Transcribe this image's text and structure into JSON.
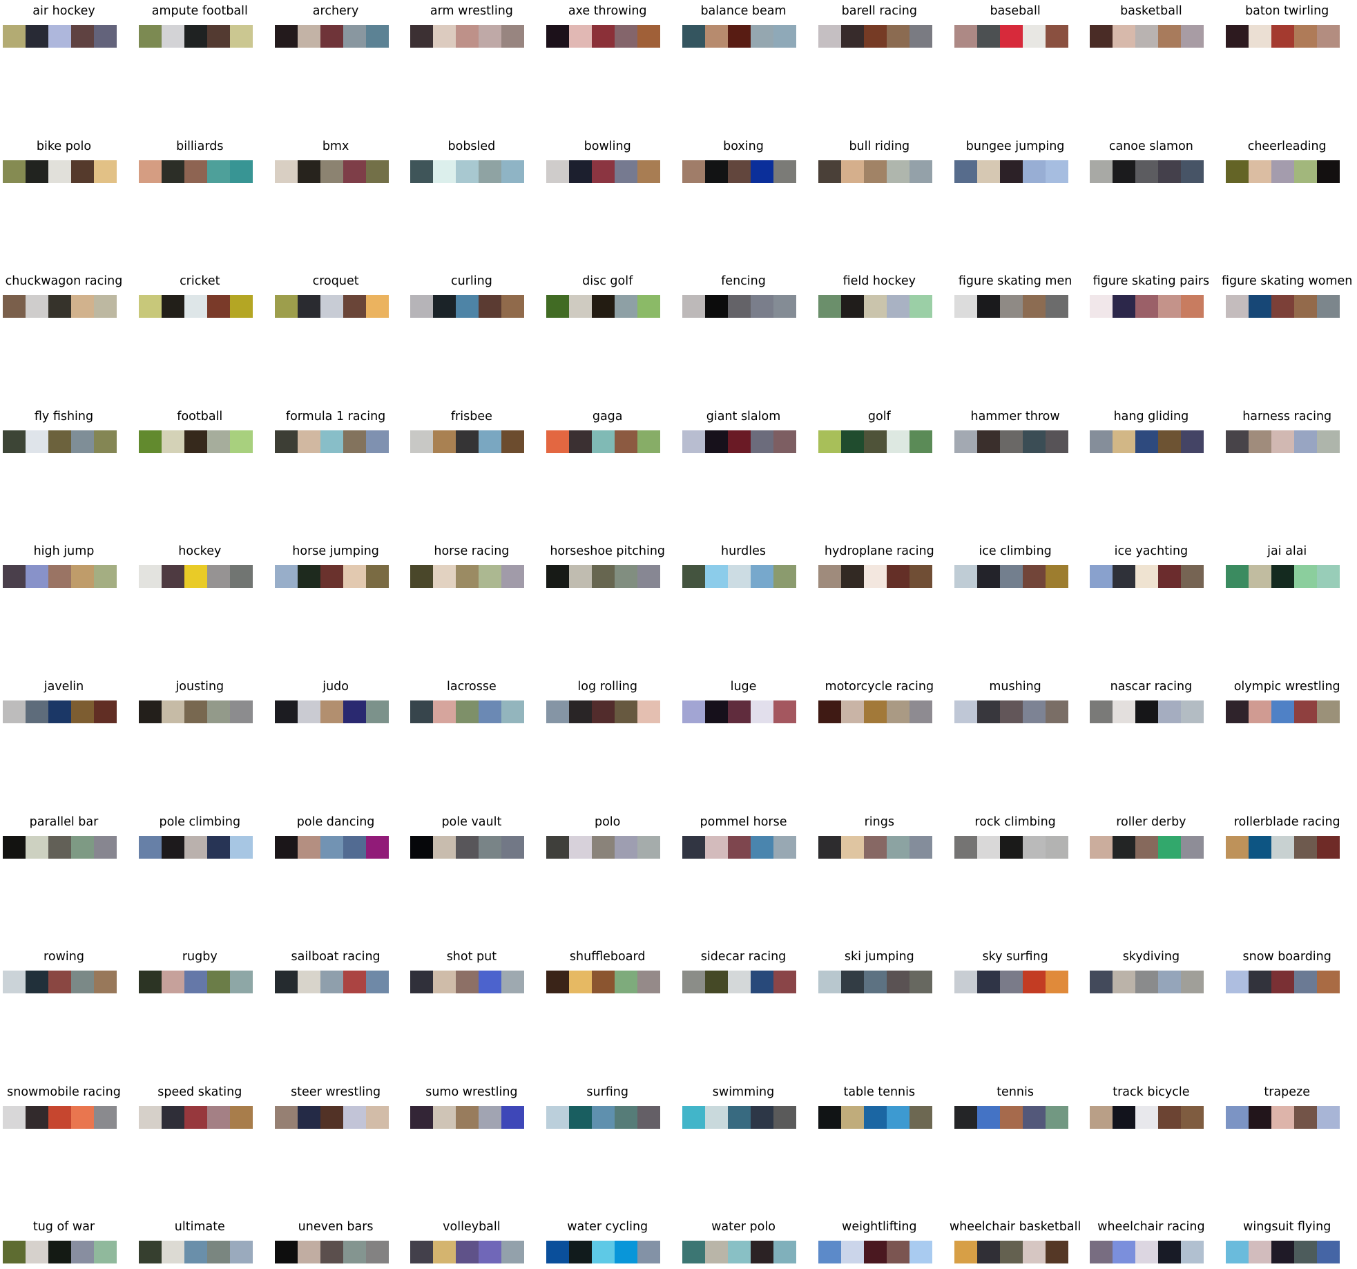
{
  "chart_data": {
    "type": "palette-grid",
    "grid": {
      "columns": 10,
      "rows": 10
    },
    "palettes": [
      {
        "name": "air hockey",
        "colors": [
          "#b3ab73",
          "#282a35",
          "#aeb7dc",
          "#5f4241",
          "#63637b"
        ]
      },
      {
        "name": "ampute football",
        "colors": [
          "#7c8a52",
          "#d3d3d6",
          "#1f2222",
          "#533a31",
          "#cbc791"
        ]
      },
      {
        "name": "archery",
        "colors": [
          "#231a1c",
          "#c3b3a6",
          "#6f3439",
          "#8997a0",
          "#5c8294"
        ]
      },
      {
        "name": "arm wrestling",
        "colors": [
          "#3c3033",
          "#dccbbf",
          "#be9189",
          "#bfa9a7",
          "#988580"
        ]
      },
      {
        "name": "axe throwing",
        "colors": [
          "#1c111a",
          "#e1b8b4",
          "#8b3038",
          "#84656b",
          "#a06038"
        ]
      },
      {
        "name": "balance beam",
        "colors": [
          "#34555f",
          "#b78b6e",
          "#581c13",
          "#95a7b0",
          "#8fa9b8"
        ]
      },
      {
        "name": "barell racing",
        "colors": [
          "#c5bfc2",
          "#372b2b",
          "#763b25",
          "#8b6b51",
          "#7a7b82"
        ]
      },
      {
        "name": "baseball",
        "colors": [
          "#ad8985",
          "#4c5052",
          "#d72a3b",
          "#e8e7e3",
          "#8a5040"
        ]
      },
      {
        "name": "basketball",
        "colors": [
          "#4a2c26",
          "#d7b9ab",
          "#b9b3b1",
          "#a87b5c",
          "#a89ca4"
        ]
      },
      {
        "name": "baton twirling",
        "colors": [
          "#2d1a1f",
          "#ebdfd3",
          "#a43a2f",
          "#af7b58",
          "#b38d80"
        ]
      },
      {
        "name": "bike polo",
        "colors": [
          "#858b52",
          "#21231f",
          "#e1e0da",
          "#553a2c",
          "#e2c186"
        ]
      },
      {
        "name": "billiards",
        "colors": [
          "#d59d82",
          "#2c2e27",
          "#8e6452",
          "#4ea09a",
          "#389594"
        ]
      },
      {
        "name": "bmx",
        "colors": [
          "#d9cfc3",
          "#27231d",
          "#8c8371",
          "#7e3e48",
          "#737048"
        ]
      },
      {
        "name": "bobsled",
        "colors": [
          "#3f5559",
          "#dcefec",
          "#a8c8d0",
          "#8fa3a3",
          "#8fb4c5"
        ]
      },
      {
        "name": "bowling",
        "colors": [
          "#cfcccb",
          "#1c1f2e",
          "#8b3541",
          "#767a90",
          "#a87d53"
        ]
      },
      {
        "name": "boxing",
        "colors": [
          "#a07d69",
          "#121314",
          "#62463d",
          "#0b2f9a",
          "#7b7b77"
        ]
      },
      {
        "name": "bull riding",
        "colors": [
          "#4a4038",
          "#d5af8c",
          "#a18366",
          "#afb6ad",
          "#94a1a9"
        ]
      },
      {
        "name": "bungee jumping",
        "colors": [
          "#576c8c",
          "#d6c8b3",
          "#2c2127",
          "#98aed4",
          "#a6bde0"
        ]
      },
      {
        "name": "canoe slamon",
        "colors": [
          "#a8a9a5",
          "#1b1b1d",
          "#5c5c60",
          "#44404b",
          "#475466"
        ]
      },
      {
        "name": "cheerleading",
        "colors": [
          "#646426",
          "#dbbda2",
          "#a49cad",
          "#a2b77c",
          "#131010"
        ]
      },
      {
        "name": "chuckwagon racing",
        "colors": [
          "#7a5f4b",
          "#cfcdcc",
          "#36332b",
          "#d1b28d",
          "#bdb8a1"
        ]
      },
      {
        "name": "cricket",
        "colors": [
          "#c8c87a",
          "#221f19",
          "#dee6e8",
          "#7a3a29",
          "#b4a624"
        ]
      },
      {
        "name": "croquet",
        "colors": [
          "#9d9e4c",
          "#2a2b30",
          "#c8ccd5",
          "#6a4538",
          "#ebb35f"
        ]
      },
      {
        "name": "curling",
        "colors": [
          "#b6b4b8",
          "#1b2328",
          "#4e84a6",
          "#5b3b32",
          "#906a4b"
        ]
      },
      {
        "name": "disc golf",
        "colors": [
          "#416b24",
          "#cfcbc1",
          "#231c12",
          "#8ea0a5",
          "#8bba67"
        ]
      },
      {
        "name": "fencing",
        "colors": [
          "#bdb9b9",
          "#0c0c0c",
          "#646368",
          "#7a7e8b",
          "#848c95"
        ]
      },
      {
        "name": "field hockey",
        "colors": [
          "#6b8f6b",
          "#201d1b",
          "#cac4ac",
          "#a9b2c3",
          "#9bcfa6"
        ]
      },
      {
        "name": "figure skating men",
        "colors": [
          "#dcdcdc",
          "#1a1a1c",
          "#8f8a85",
          "#8c6c52",
          "#6c6c6c"
        ]
      },
      {
        "name": "figure skating pairs",
        "colors": [
          "#f1e7ea",
          "#2c274a",
          "#9b6068",
          "#c4938a",
          "#c87c60"
        ]
      },
      {
        "name": "figure skating women",
        "colors": [
          "#c4bcbd",
          "#174776",
          "#7c4038",
          "#936a4b",
          "#7c868c"
        ]
      },
      {
        "name": "fly fishing",
        "colors": [
          "#3d4536",
          "#dfe4ea",
          "#6c623d",
          "#7f8e97",
          "#848654"
        ]
      },
      {
        "name": "football",
        "colors": [
          "#628a2e",
          "#d4d2b7",
          "#36291c",
          "#a6ad9c",
          "#a8d07e"
        ]
      },
      {
        "name": "formula 1 racing",
        "colors": [
          "#3d3e35",
          "#d1b8a1",
          "#88bec8",
          "#83735d",
          "#7f91b0"
        ]
      },
      {
        "name": "frisbee",
        "colors": [
          "#c8c8c5",
          "#a98152",
          "#353435",
          "#7aa7c1",
          "#6c4c2e"
        ]
      },
      {
        "name": "gaga",
        "colors": [
          "#e36741",
          "#3b3032",
          "#80bab5",
          "#8c5a41",
          "#87ad67"
        ]
      },
      {
        "name": "giant slalom",
        "colors": [
          "#b8bdd0",
          "#17111b",
          "#6a1a25",
          "#6c6c7c",
          "#7d5e62"
        ]
      },
      {
        "name": "golf",
        "colors": [
          "#a8bf59",
          "#204c2e",
          "#4f5339",
          "#dde8e1",
          "#5b8b57"
        ]
      },
      {
        "name": "hammer throw",
        "colors": [
          "#a3a9b2",
          "#3a2f2c",
          "#6a6866",
          "#3b4d55",
          "#575357"
        ]
      },
      {
        "name": "hang gliding",
        "colors": [
          "#858e9a",
          "#d2b786",
          "#2e4a7e",
          "#6d5333",
          "#444465"
        ]
      },
      {
        "name": "harness racing",
        "colors": [
          "#484449",
          "#a08c7c",
          "#d1b8b2",
          "#98a5c2",
          "#aeb5ab"
        ]
      },
      {
        "name": "high jump",
        "colors": [
          "#4a3f4b",
          "#8892c9",
          "#9a7464",
          "#bf9c6a",
          "#a4ae82"
        ]
      },
      {
        "name": "hockey",
        "colors": [
          "#e3e3df",
          "#4e3a41",
          "#e9cb27",
          "#969393",
          "#717572"
        ]
      },
      {
        "name": "horse jumping",
        "colors": [
          "#98aec9",
          "#1e2a1e",
          "#6a322d",
          "#e2c9b0",
          "#7a6b43"
        ]
      },
      {
        "name": "horse racing",
        "colors": [
          "#4a472a",
          "#e2d2c1",
          "#9b8b63",
          "#acb891",
          "#a19ba9"
        ]
      },
      {
        "name": "horseshoe pitching",
        "colors": [
          "#171a16",
          "#c0bcb0",
          "#676650",
          "#818e80",
          "#878793"
        ]
      },
      {
        "name": "hurdles",
        "colors": [
          "#44543f",
          "#8cccea",
          "#ccdce3",
          "#77a8cc",
          "#8b9b6e"
        ]
      },
      {
        "name": "hydroplane racing",
        "colors": [
          "#9f8b7c",
          "#322923",
          "#f3e7df",
          "#642f27",
          "#704e35"
        ]
      },
      {
        "name": "ice climbing",
        "colors": [
          "#bfccd5",
          "#23232a",
          "#737f8e",
          "#724539",
          "#9d7d2f"
        ]
      },
      {
        "name": "ice yachting",
        "colors": [
          "#89a1cd",
          "#2f3139",
          "#efe3d1",
          "#6b2c2d",
          "#766453"
        ]
      },
      {
        "name": "jai alai",
        "colors": [
          "#3b8b60",
          "#c1bca0",
          "#142a1f",
          "#8bce9d",
          "#98cdb8"
        ]
      },
      {
        "name": "javelin",
        "colors": [
          "#bdbcbc",
          "#5e6c7b",
          "#1b3766",
          "#7d5d31",
          "#612e24"
        ]
      },
      {
        "name": "jousting",
        "colors": [
          "#231f1b",
          "#c6bba6",
          "#786850",
          "#939a8a",
          "#8c8c8e"
        ]
      },
      {
        "name": "judo",
        "colors": [
          "#1c1c21",
          "#cacbd2",
          "#b28f6f",
          "#2a2970",
          "#7c928b"
        ]
      },
      {
        "name": "lacrosse",
        "colors": [
          "#37454c",
          "#d6a59d",
          "#7e9069",
          "#6b89b4",
          "#93b5bd"
        ]
      },
      {
        "name": "log rolling",
        "colors": [
          "#8595a5",
          "#292526",
          "#522c2c",
          "#675940",
          "#e4bfb1"
        ]
      },
      {
        "name": "luge",
        "colors": [
          "#a2a5d3",
          "#16101b",
          "#602c3d",
          "#e2dfec",
          "#a4575f"
        ]
      },
      {
        "name": "motorcycle racing",
        "colors": [
          "#3f1a14",
          "#c9b4a6",
          "#a27939",
          "#aa9a84",
          "#8e8b91"
        ]
      },
      {
        "name": "mushing",
        "colors": [
          "#bfc7d6",
          "#38373d",
          "#625659",
          "#7d8394",
          "#7a6e66"
        ]
      },
      {
        "name": "nascar racing",
        "colors": [
          "#7a7a78",
          "#e3dfdd",
          "#161618",
          "#a5adc0",
          "#b3bcc3"
        ]
      },
      {
        "name": "olympic wrestling",
        "colors": [
          "#2f232b",
          "#d09b92",
          "#4f81c6",
          "#8f403f",
          "#9b9179"
        ]
      },
      {
        "name": "parallel bar",
        "colors": [
          "#131311",
          "#cdd1c1",
          "#626057",
          "#7e9a84",
          "#878690"
        ]
      },
      {
        "name": "pole climbing",
        "colors": [
          "#6780a7",
          "#1d1a1c",
          "#bab1ad",
          "#273455",
          "#a7c6e3"
        ]
      },
      {
        "name": "pole dancing",
        "colors": [
          "#1b1619",
          "#b48f81",
          "#7293b3",
          "#526b92",
          "#911b78"
        ]
      },
      {
        "name": "pole vault",
        "colors": [
          "#06070a",
          "#c8bcae",
          "#58565a",
          "#798487",
          "#727886"
        ]
      },
      {
        "name": "polo",
        "colors": [
          "#3f3f3b",
          "#d7d1da",
          "#8a837a",
          "#9e9eb1",
          "#a5acab"
        ]
      },
      {
        "name": "pommel horse",
        "colors": [
          "#313542",
          "#d3bbbc",
          "#7e464e",
          "#4a85ae",
          "#98a8b3"
        ]
      },
      {
        "name": "rings",
        "colors": [
          "#2d2c2e",
          "#dfc5a1",
          "#876864",
          "#8ca3a2",
          "#848d9b"
        ]
      },
      {
        "name": "rock climbing",
        "colors": [
          "#757473",
          "#d9d8d8",
          "#1a1a19",
          "#bababa",
          "#b3b3b2"
        ]
      },
      {
        "name": "roller derby",
        "colors": [
          "#cbad9d",
          "#232525",
          "#86695c",
          "#32a86c",
          "#8e8d97"
        ]
      },
      {
        "name": "rollerblade racing",
        "colors": [
          "#be925a",
          "#0d5583",
          "#c8d1d1",
          "#6e5a4e",
          "#6f2b27"
        ]
      },
      {
        "name": "rowing",
        "colors": [
          "#cbd3d8",
          "#21303a",
          "#8a4742",
          "#7b8987",
          "#98785a"
        ]
      },
      {
        "name": "rugby",
        "colors": [
          "#2c3424",
          "#c6a19b",
          "#6578a8",
          "#6b7d48",
          "#8ea7a6"
        ]
      },
      {
        "name": "sailboat racing",
        "colors": [
          "#252b2f",
          "#d8d4cb",
          "#8f9fac",
          "#ab4442",
          "#6f89a7"
        ]
      },
      {
        "name": "shot put",
        "colors": [
          "#30303a",
          "#cfbca9",
          "#8d7066",
          "#4c63cd",
          "#9ea9b0"
        ]
      },
      {
        "name": "shuffleboard",
        "colors": [
          "#3a2418",
          "#e6b963",
          "#8b5530",
          "#7eab7c",
          "#958a89"
        ]
      },
      {
        "name": "sidecar racing",
        "colors": [
          "#8b8d88",
          "#454926",
          "#d4d8d9",
          "#28497a",
          "#8a4548"
        ]
      },
      {
        "name": "ski jumping",
        "colors": [
          "#b8c7ce",
          "#323c44",
          "#5d7282",
          "#5a5253",
          "#676860"
        ]
      },
      {
        "name": "sky surfing",
        "colors": [
          "#c8cdd3",
          "#2f3446",
          "#7a7b89",
          "#c33c23",
          "#e08a3a"
        ]
      },
      {
        "name": "skydiving",
        "colors": [
          "#434a5b",
          "#bbb3a9",
          "#8a8b8c",
          "#95a5ba",
          "#a09f99"
        ]
      },
      {
        "name": "snow boarding",
        "colors": [
          "#aebee0",
          "#32333c",
          "#7a3034",
          "#6b7a94",
          "#a96b44"
        ]
      },
      {
        "name": "snowmobile racing",
        "colors": [
          "#d8d7d8",
          "#322a2c",
          "#c6462f",
          "#e9764f",
          "#8a8a8e"
        ]
      },
      {
        "name": "speed skating",
        "colors": [
          "#d6d0c9",
          "#2f2e38",
          "#97383d",
          "#a48085",
          "#a87d4b"
        ]
      },
      {
        "name": "steer wrestling",
        "colors": [
          "#968073",
          "#242a46",
          "#523226",
          "#c2c4d7",
          "#d2bca8"
        ]
      },
      {
        "name": "sumo wrestling",
        "colors": [
          "#332536",
          "#cfc4b6",
          "#987c5d",
          "#a1a4b2",
          "#3e47b8"
        ]
      },
      {
        "name": "surfing",
        "colors": [
          "#bbcfdb",
          "#195e60",
          "#5f90ae",
          "#567c78",
          "#645f66"
        ]
      },
      {
        "name": "swimming",
        "colors": [
          "#42b5c9",
          "#c9d9dc",
          "#386a80",
          "#2d3747",
          "#5a5a5a"
        ]
      },
      {
        "name": "table tennis",
        "colors": [
          "#111415",
          "#c0ac7b",
          "#1b66a3",
          "#3d9ad1",
          "#6d6852"
        ]
      },
      {
        "name": "tennis",
        "colors": [
          "#242527",
          "#4473c5",
          "#a66a4c",
          "#53587a",
          "#729882"
        ]
      },
      {
        "name": "track bicycle",
        "colors": [
          "#b99f87",
          "#12131c",
          "#e8e8ec",
          "#6c4433",
          "#7f5c40"
        ]
      },
      {
        "name": "trapeze",
        "colors": [
          "#7c94c4",
          "#22151b",
          "#ddb4aa",
          "#735448",
          "#a8b5d6"
        ]
      },
      {
        "name": "tug of war",
        "colors": [
          "#5e6c31",
          "#d6d1cc",
          "#141a14",
          "#888ea0",
          "#90b99c"
        ]
      },
      {
        "name": "ultimate",
        "colors": [
          "#363f2f",
          "#dcdad3",
          "#6a8faa",
          "#7a8680",
          "#9aaabd"
        ]
      },
      {
        "name": "uneven bars",
        "colors": [
          "#0e0e0e",
          "#c1ada2",
          "#5b4f4d",
          "#849590",
          "#838282"
        ]
      },
      {
        "name": "volleyball",
        "colors": [
          "#43404b",
          "#d4b46f",
          "#5f5289",
          "#7067b8",
          "#93a1ab"
        ]
      },
      {
        "name": "water cycling",
        "colors": [
          "#0a4f9b",
          "#111b1c",
          "#5ec9e6",
          "#0996d9",
          "#8392a6"
        ]
      },
      {
        "name": "water polo",
        "colors": [
          "#3c7673",
          "#b9b5a8",
          "#89c0c5",
          "#2b2224",
          "#80b0bb"
        ]
      },
      {
        "name": "weightlifting",
        "colors": [
          "#5c8ac9",
          "#cbd5ea",
          "#4a1820",
          "#7b5551",
          "#a9cbf0"
        ]
      },
      {
        "name": "wheelchair basketball",
        "colors": [
          "#d79f46",
          "#302f36",
          "#646150",
          "#d6c6c2",
          "#553826"
        ]
      },
      {
        "name": "wheelchair racing",
        "colors": [
          "#786d81",
          "#7b8fdc",
          "#dcd6e1",
          "#181b26",
          "#b1c0d0"
        ]
      },
      {
        "name": "wingsuit flying",
        "colors": [
          "#6abbdc",
          "#d2bcbd",
          "#1f1a27",
          "#4d5c5c",
          "#4565a5"
        ]
      }
    ]
  }
}
